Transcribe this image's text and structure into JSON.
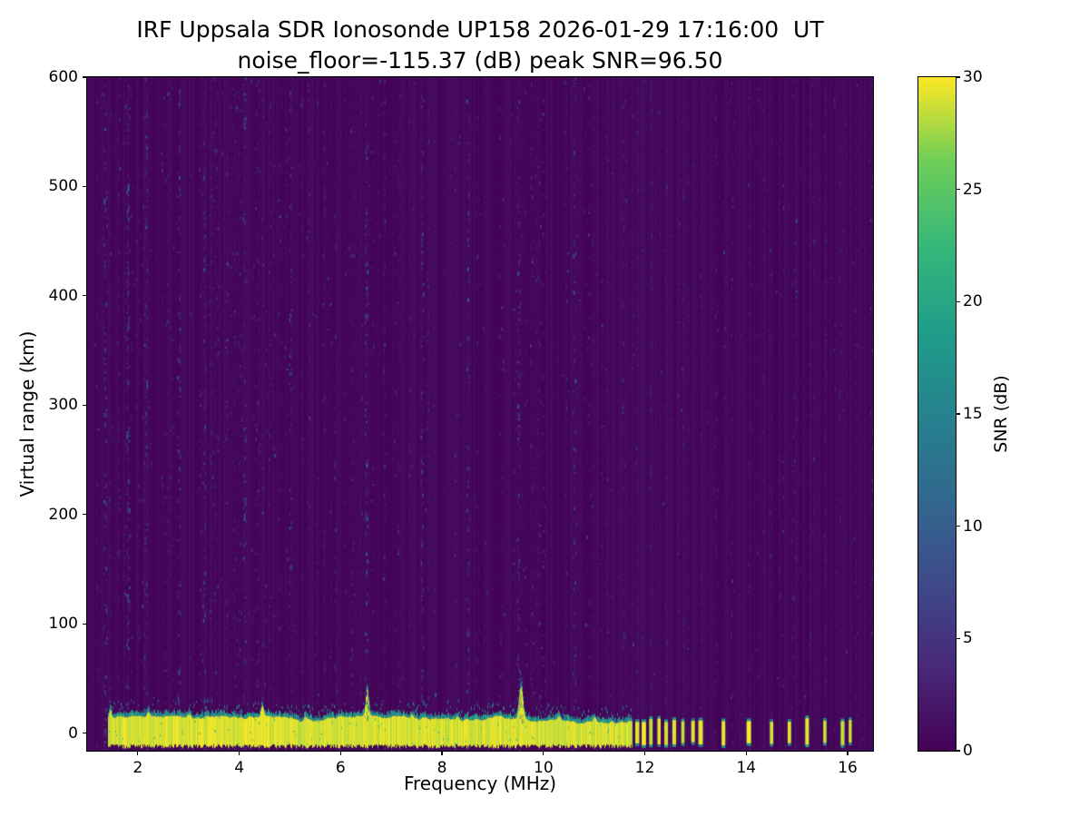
{
  "chart_data": {
    "type": "heatmap",
    "title_line1": "IRF Uppsala SDR Ionosonde UP158 2026-01-29 17:16:00  UT",
    "title_line2": "noise_floor=-115.37 (dB) peak SNR=96.50",
    "xlabel": "Frequency (MHz)",
    "ylabel": "Virtual range (km)",
    "xlim": [
      1.0,
      16.5
    ],
    "ylim": [
      -16,
      600
    ],
    "xticks": [
      2,
      4,
      6,
      8,
      10,
      12,
      14,
      16
    ],
    "yticks": [
      0,
      100,
      200,
      300,
      400,
      500,
      600
    ],
    "colormap": "viridis",
    "colorbar": {
      "label": "SNR (dB)",
      "ticks": [
        0,
        5,
        10,
        15,
        20,
        25,
        30
      ],
      "vmin": 0,
      "vmax": 30
    },
    "background_snr": 0.5,
    "ground_band": {
      "freq_start": 1.42,
      "freq_end": 11.75,
      "range_bottom": -10,
      "range_top": 12,
      "snr": 30
    },
    "band_spikes": [
      {
        "freq": 1.45,
        "top": 20,
        "sigma": 1.5
      },
      {
        "freq": 2.2,
        "top": 16,
        "sigma": 1.5
      },
      {
        "freq": 3.0,
        "top": 16,
        "sigma": 1.5
      },
      {
        "freq": 4.45,
        "top": 22,
        "sigma": 1.6
      },
      {
        "freq": 5.3,
        "top": 15,
        "sigma": 1.5
      },
      {
        "freq": 6.52,
        "top": 38,
        "sigma": 1.6
      },
      {
        "freq": 7.4,
        "top": 15,
        "sigma": 1.5
      },
      {
        "freq": 8.3,
        "top": 16,
        "sigma": 1.5
      },
      {
        "freq": 9.55,
        "top": 42,
        "sigma": 2.2
      },
      {
        "freq": 10.3,
        "top": 16,
        "sigma": 1.5
      },
      {
        "freq": 11.0,
        "top": 15,
        "sigma": 1.5
      },
      {
        "freq": 11.35,
        "top": 14,
        "sigma": 1.5
      }
    ],
    "pulses": [
      11.85,
      11.98,
      12.12,
      12.28,
      12.42,
      12.58,
      12.75,
      12.95,
      13.1,
      13.55,
      14.05,
      14.5,
      14.85,
      15.2,
      15.55,
      15.9,
      16.05
    ],
    "noise_streaks": [
      {
        "freq": 1.35,
        "strength": 0.5
      },
      {
        "freq": 1.8,
        "strength": 0.9
      },
      {
        "freq": 2.15,
        "strength": 0.5
      },
      {
        "freq": 2.8,
        "strength": 0.6
      },
      {
        "freq": 3.3,
        "strength": 0.5
      },
      {
        "freq": 4.1,
        "strength": 0.45
      },
      {
        "freq": 5.0,
        "strength": 0.4
      },
      {
        "freq": 6.5,
        "strength": 0.6
      },
      {
        "freq": 7.6,
        "strength": 0.4
      },
      {
        "freq": 8.5,
        "strength": 0.45
      },
      {
        "freq": 9.5,
        "strength": 0.6
      },
      {
        "freq": 10.6,
        "strength": 0.4
      }
    ],
    "rfi_stripes": [
      11.85,
      12.12,
      12.42,
      12.75,
      13.1,
      13.4,
      13.7,
      14.05,
      14.35,
      14.65,
      14.95,
      15.25,
      15.55,
      15.85,
      16.15
    ],
    "noise_seed": 42
  }
}
